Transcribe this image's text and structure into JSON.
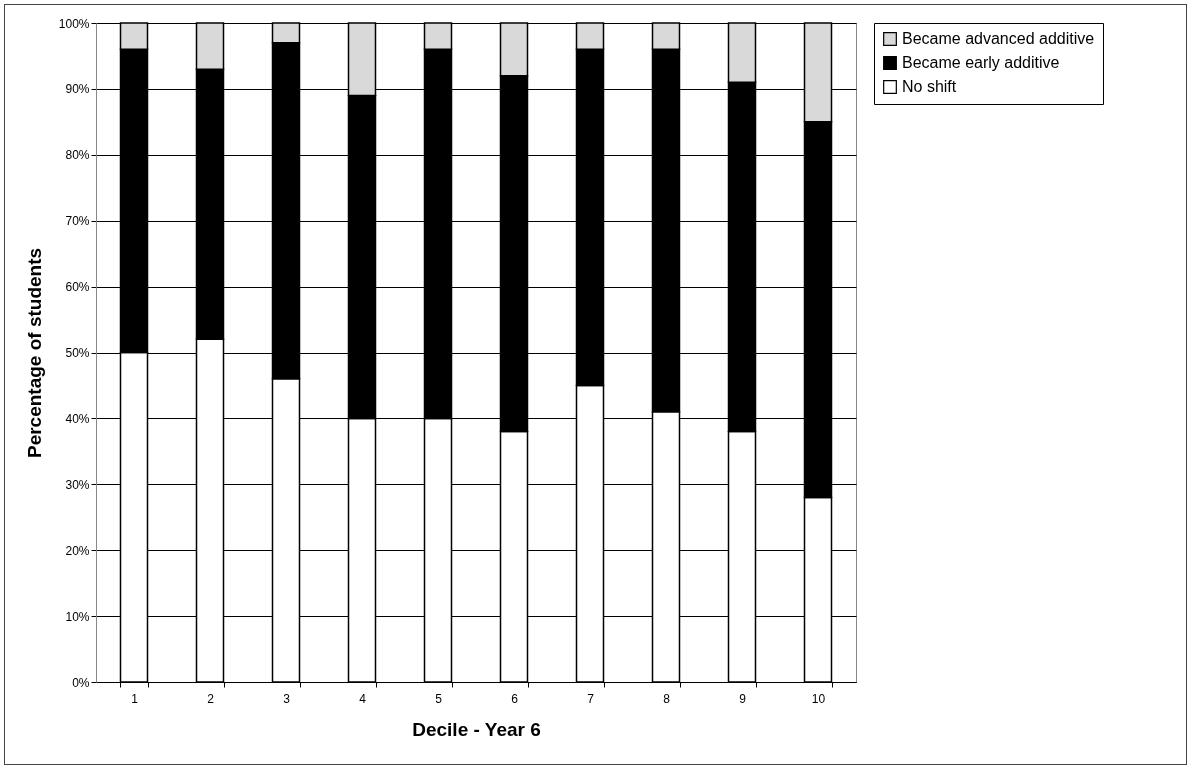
{
  "chart_data": {
    "type": "bar",
    "stacked": true,
    "xlabel": "Decile - Year 6",
    "ylabel": "Percentage of students",
    "categories": [
      "1",
      "2",
      "3",
      "4",
      "5",
      "6",
      "7",
      "8",
      "9",
      "10"
    ],
    "series": [
      {
        "name": "No shift",
        "color": "#ffffff",
        "values": [
          50,
          52,
          46,
          40,
          40,
          38,
          45,
          41,
          38,
          28
        ]
      },
      {
        "name": "Became early additive",
        "color": "#000000",
        "values": [
          46,
          41,
          51,
          49,
          56,
          54,
          51,
          55,
          53,
          57
        ]
      },
      {
        "name": "Became advanced additive",
        "color": "#d9d9d9",
        "values": [
          4,
          7,
          3,
          11,
          4,
          8,
          4,
          4,
          9,
          15
        ]
      }
    ],
    "ylim": [
      0,
      100
    ],
    "yticks": [
      {
        "value": 0,
        "label": "0%"
      },
      {
        "value": 10,
        "label": "10%"
      },
      {
        "value": 20,
        "label": "20%"
      },
      {
        "value": 30,
        "label": "30%"
      },
      {
        "value": 40,
        "label": "40%"
      },
      {
        "value": 50,
        "label": "50%"
      },
      {
        "value": 60,
        "label": "60%"
      },
      {
        "value": 70,
        "label": "70%"
      },
      {
        "value": 80,
        "label": "80%"
      },
      {
        "value": 90,
        "label": "90%"
      },
      {
        "value": 100,
        "label": "100%"
      }
    ],
    "grid": "y",
    "legend": "right"
  }
}
